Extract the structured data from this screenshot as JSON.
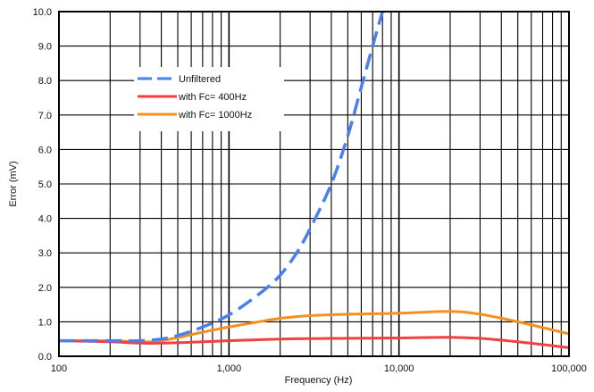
{
  "chart_data": {
    "type": "line",
    "xlabel": "Frequency (Hz)",
    "ylabel": "Error (mV)",
    "xscale": "log",
    "xlim": [
      100,
      100000
    ],
    "ylim": [
      0,
      10
    ],
    "xticks": [
      "100",
      "1,000",
      "10,000",
      "100,000"
    ],
    "yticks": [
      "0.0",
      "1.0",
      "2.0",
      "3.0",
      "4.0",
      "5.0",
      "6.0",
      "7.0",
      "8.0",
      "9.0",
      "10.0"
    ],
    "grid": true,
    "legend_position": "upper-left",
    "series": [
      {
        "name": "Unfiltered",
        "color": "#4a7ff0",
        "dash": "dashed",
        "x": [
          100,
          200,
          300,
          400,
          500,
          700,
          1000,
          1500,
          2000,
          2500,
          3000,
          4000,
          5000,
          6000,
          7000,
          8000
        ],
        "y": [
          0.45,
          0.45,
          0.45,
          0.5,
          0.6,
          0.85,
          1.2,
          1.8,
          2.35,
          3.0,
          3.7,
          5.0,
          6.4,
          7.8,
          9.0,
          10.0
        ]
      },
      {
        "name": "with Fc= 400Hz",
        "color": "#f04040",
        "dash": "solid",
        "x": [
          100,
          200,
          300,
          400,
          700,
          1000,
          2000,
          5000,
          10000,
          20000,
          30000,
          50000,
          100000
        ],
        "y": [
          0.45,
          0.42,
          0.38,
          0.38,
          0.42,
          0.45,
          0.5,
          0.52,
          0.53,
          0.55,
          0.52,
          0.42,
          0.25
        ]
      },
      {
        "name": "with Fc= 1000Hz",
        "color": "#f59020",
        "dash": "solid",
        "x": [
          100,
          200,
          300,
          400,
          700,
          1000,
          1500,
          2000,
          3000,
          5000,
          10000,
          20000,
          30000,
          50000,
          100000
        ],
        "y": [
          0.45,
          0.45,
          0.42,
          0.45,
          0.7,
          0.85,
          1.0,
          1.1,
          1.18,
          1.22,
          1.25,
          1.3,
          1.22,
          1.0,
          0.65
        ]
      }
    ]
  }
}
